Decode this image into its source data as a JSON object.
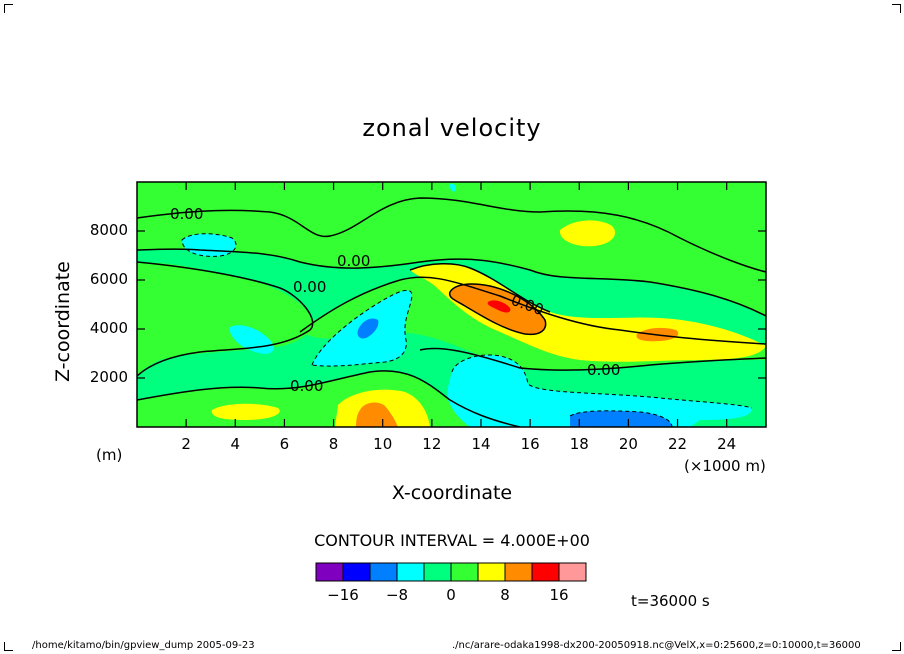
{
  "chart_data": {
    "type": "contour",
    "title": "zonal velocity",
    "xlabel": "X-coordinate",
    "ylabel": "Z-coordinate",
    "x_unit": "(×1000 m)",
    "y_unit": "(m)",
    "x_ticks": [
      "2",
      "4",
      "6",
      "8",
      "10",
      "12",
      "14",
      "16",
      "18",
      "20",
      "22",
      "24"
    ],
    "y_ticks": [
      "2000",
      "4000",
      "6000",
      "8000"
    ],
    "xlim": [
      0,
      25.6
    ],
    "ylim": [
      0,
      10000
    ],
    "contour_labels": [
      "0.00",
      "0.00",
      "0.00",
      "0.00",
      "0.00",
      "0.00"
    ],
    "contour_interval_text": "CONTOUR INTERVAL = 4.000E+00",
    "colorbar": {
      "levels": [
        -20,
        -16,
        -12,
        -8,
        -4,
        0,
        4,
        8,
        12,
        16,
        20
      ],
      "tick_labels": [
        "−16",
        "−8",
        "0",
        "8",
        "16"
      ],
      "colors": [
        "#7f00bf",
        "#0000ff",
        "#007fff",
        "#00ffff",
        "#00ff7f",
        "#33ff33",
        "#ffff00",
        "#ff8c00",
        "#ff0000",
        "#ff9999"
      ]
    },
    "time_label": "t=36000 s"
  },
  "footer": {
    "left": "/home/kitamo/bin/gpview_dump  2005-09-23",
    "right": "./nc/arare-odaka1998-dx200-20050918.nc@VelX,x=0:25600,z=0:10000,t=36000"
  }
}
